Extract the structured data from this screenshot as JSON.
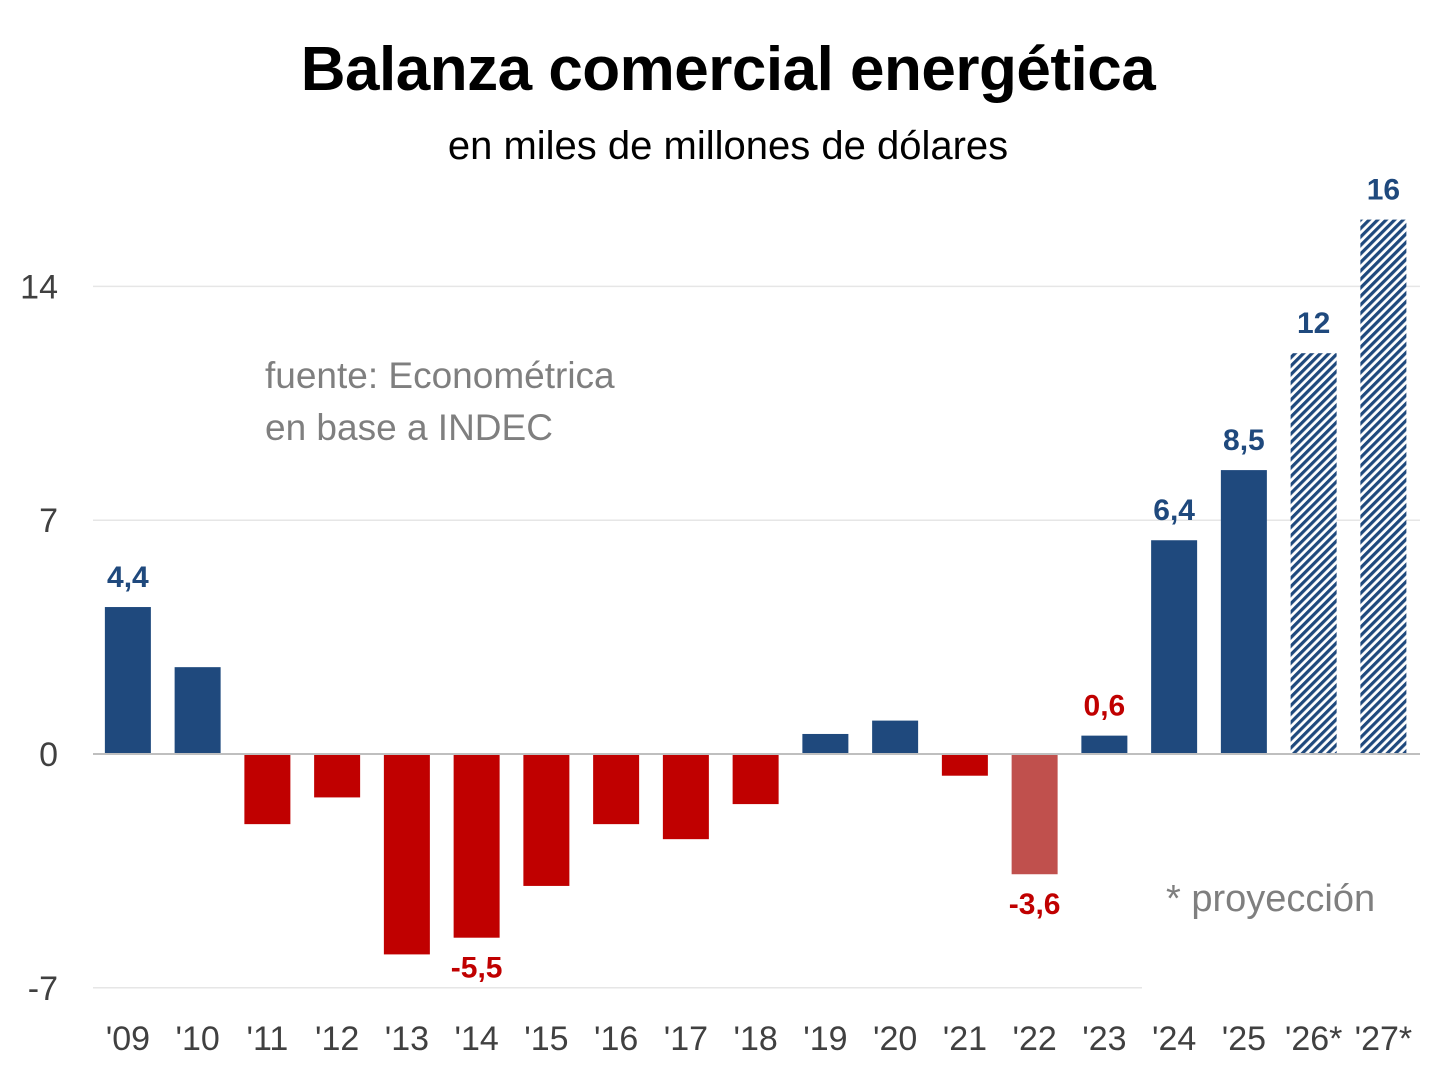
{
  "chart_data": {
    "type": "bar",
    "title": "Balanza comercial energética",
    "subtitle": "en miles de millones de dólares",
    "source": [
      "fuente: Econométrica",
      "en base a INDEC"
    ],
    "note": "* proyección",
    "ylim": [
      -7,
      16
    ],
    "yticks": [
      -7,
      0,
      7,
      14
    ],
    "ytick_labels": [
      "-7",
      "0",
      "7",
      "14"
    ],
    "categories": [
      "'09",
      "'10",
      "'11",
      "'12",
      "'13",
      "'14",
      "'15",
      "'16",
      "'17",
      "'18",
      "'19",
      "'20",
      "'21",
      "'22",
      "'23",
      "'24",
      "'25",
      "'26*",
      "'27*"
    ],
    "values": [
      4.4,
      2.6,
      -2.1,
      -1.3,
      -6.0,
      -5.5,
      -3.95,
      -2.1,
      -2.55,
      -1.5,
      0.6,
      1.0,
      -0.65,
      -3.6,
      0.55,
      6.4,
      8.5,
      12,
      16
    ],
    "data_labels": [
      "4,4",
      "",
      "",
      "",
      "",
      "-5,5",
      "",
      "",
      "",
      "",
      "",
      "",
      "",
      "-3,6",
      "0,6",
      "6,4",
      "8,5",
      "12",
      "16"
    ],
    "projected": [
      false,
      false,
      false,
      false,
      false,
      false,
      false,
      false,
      false,
      false,
      false,
      false,
      false,
      false,
      false,
      false,
      false,
      true,
      true
    ],
    "highlighted": [
      false,
      false,
      false,
      false,
      false,
      false,
      false,
      false,
      false,
      false,
      false,
      false,
      false,
      true,
      false,
      false,
      false,
      false,
      false
    ],
    "grid": true,
    "colors": {
      "positive": "#1f497d",
      "negative": "#c00000",
      "highlight": "#c0504d",
      "tick_text": "#404040",
      "note_text": "#7f7f7f",
      "grid": "#e6e6e6",
      "axis": "#bfbfbf"
    }
  }
}
